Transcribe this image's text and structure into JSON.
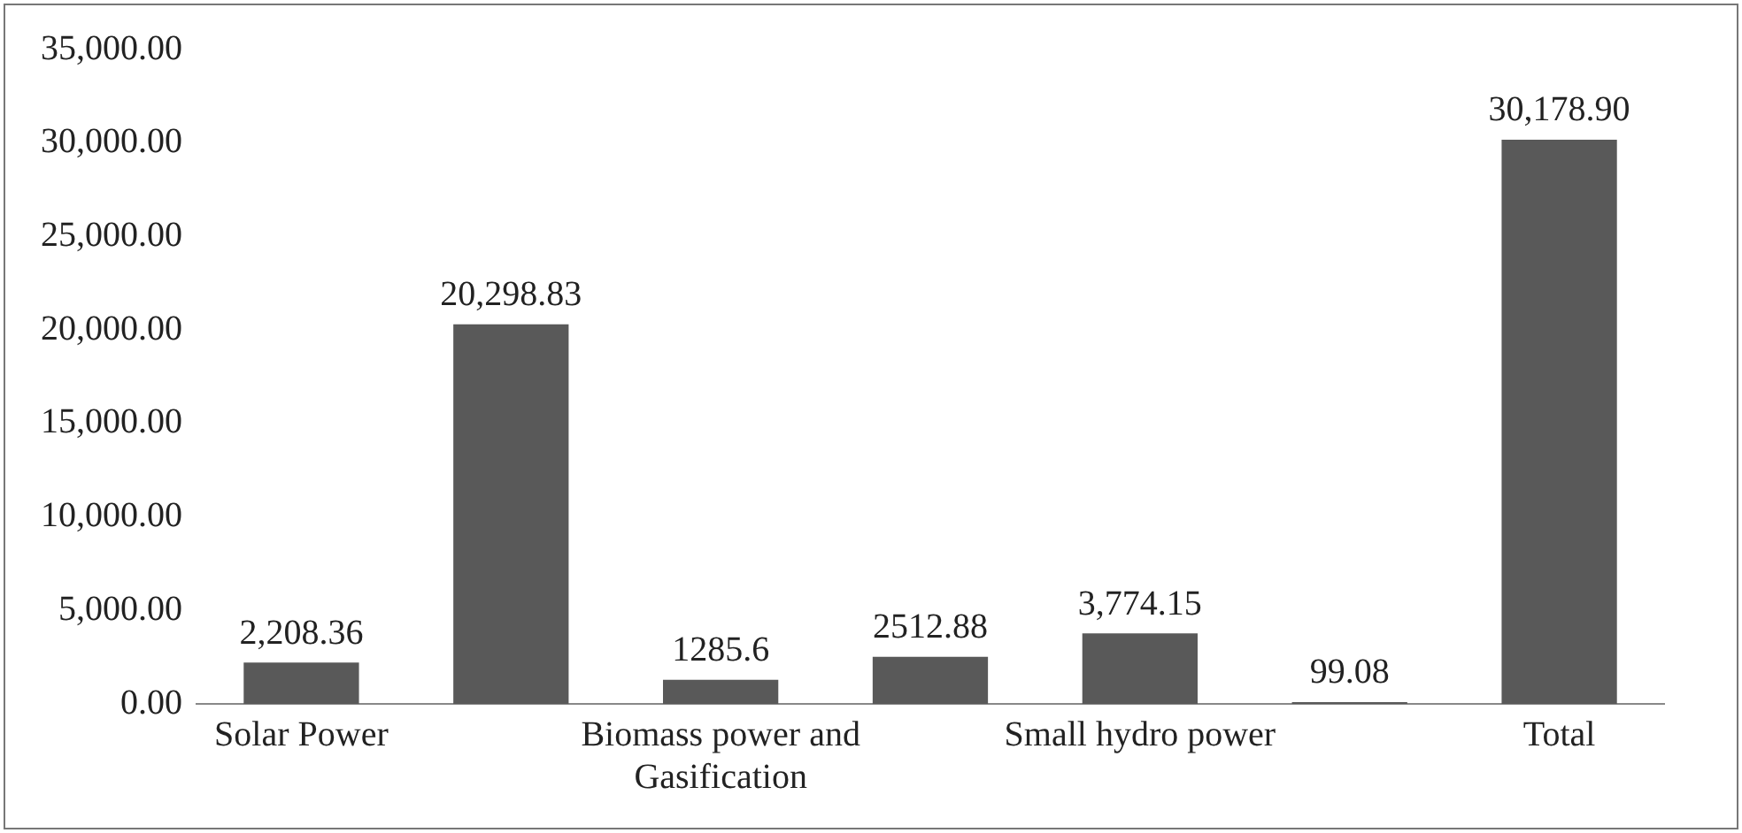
{
  "chart_data": {
    "type": "bar",
    "categories": [
      "Solar Power",
      null,
      "Biomass power and Gasification",
      null,
      "Small hydro power",
      null,
      "Total"
    ],
    "values": [
      2208.36,
      20298.83,
      1285.6,
      2512.88,
      3774.15,
      99.08,
      30178.9
    ],
    "value_labels": [
      "2,208.36",
      "20,298.83",
      "1285.6",
      "2512.88",
      "3,774.15",
      "99.08",
      "30,178.90"
    ],
    "color": "#595959",
    "ylim": [
      0,
      35000
    ],
    "yticks": [
      {
        "value": 0,
        "label": "0.00"
      },
      {
        "value": 5000,
        "label": "5,000.00"
      },
      {
        "value": 10000,
        "label": "10,000.00"
      },
      {
        "value": 15000,
        "label": "15,000.00"
      },
      {
        "value": 20000,
        "label": "20,000.00"
      },
      {
        "value": 25000,
        "label": "25,000.00"
      },
      {
        "value": 30000,
        "label": "30,000.00"
      },
      {
        "value": 35000,
        "label": "35,000.00"
      }
    ],
    "grid": false,
    "legend": false
  }
}
